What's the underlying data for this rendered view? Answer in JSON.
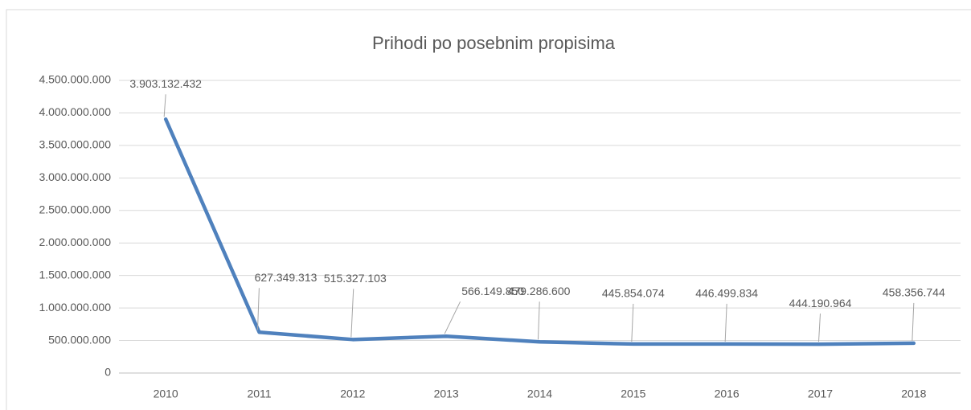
{
  "chart_data": {
    "type": "line",
    "title": "Prihodi po posebnim propisima",
    "categories": [
      "2010",
      "2011",
      "2012",
      "2013",
      "2014",
      "2015",
      "2016",
      "2017",
      "2018"
    ],
    "series": [
      {
        "name": "Prihodi",
        "color": "#4f81bd",
        "values": [
          3903132432,
          627349313,
          515327103,
          566149850,
          479286600,
          445854074,
          446499834,
          444190964,
          458356744
        ],
        "value_labels": [
          "3.903.132.432",
          "627.349.313",
          "515.327.103",
          "566.149.850",
          "479.286.600",
          "445.854.074",
          "446.499.834",
          "444.190.964",
          "458.356.744"
        ]
      }
    ],
    "ylim": [
      0,
      4500000000
    ],
    "yticks": [
      0,
      {
        "value": 500000000,
        "label": "500.000.000"
      },
      {
        "value": 1000000000,
        "label": "1.000.000.000"
      },
      {
        "value": 1500000000,
        "label": "1.500.000.000"
      },
      {
        "value": 2000000000,
        "label": "2.000.000.000"
      },
      {
        "value": 2500000000,
        "label": "2.500.000.000"
      },
      {
        "value": 3000000000,
        "label": "3.000.000.000"
      },
      {
        "value": 3500000000,
        "label": "3.500.000.000"
      },
      {
        "value": 4000000000,
        "label": "4.000.000.000"
      },
      {
        "value": 4500000000,
        "label": "4.500.000.000"
      }
    ],
    "grid": true
  }
}
